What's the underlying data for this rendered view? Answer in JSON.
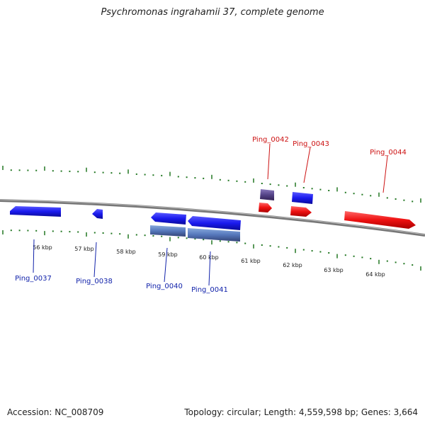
{
  "title": "Psychromonas ingrahamii 37, complete genome",
  "footer": {
    "accession": "Accession: NC_008709",
    "stats": "Topology: circular; Length: 4,559,598 bp; Genes: 3,664"
  },
  "scale_labels": [
    "56 kbp",
    "57 kbp",
    "58 kbp",
    "59 kbp",
    "60 kbp",
    "61 kbp",
    "62 kbp",
    "63 kbp",
    "64 kbp"
  ],
  "genes_top": [
    "Ping_0042",
    "Ping_0043",
    "Ping_0044"
  ],
  "genes_bottom": [
    "Ping_0037",
    "Ping_0038",
    "Ping_0040",
    "Ping_0041"
  ],
  "colors": {
    "forward_gene": "#ee1111",
    "reverse_gene": "#1a1aee",
    "rna": "#5577bb",
    "other": "#554488",
    "backbone": "#888888",
    "ticks": "#227722",
    "label_top": "#cc1111",
    "label_bottom": "#1122aa"
  }
}
